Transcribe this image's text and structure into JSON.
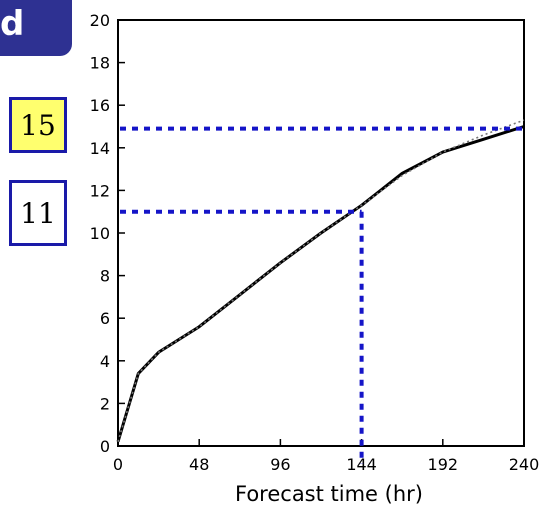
{
  "panel_label": "d",
  "annotations": {
    "upper_value": "15",
    "lower_value": "11"
  },
  "colors": {
    "badge": "#2e3192",
    "guide": "#1515c8",
    "highlight": "#ffff6e"
  },
  "chart_data": {
    "type": "line",
    "title": "",
    "xlabel": "Forecast time (hr)",
    "ylabel": "",
    "xlim": [
      0,
      240
    ],
    "ylim": [
      0,
      20
    ],
    "xticks": [
      0,
      48,
      96,
      144,
      192,
      240
    ],
    "yticks": [
      0,
      2,
      4,
      6,
      8,
      10,
      12,
      14,
      16,
      18,
      20
    ],
    "grid": false,
    "series": [
      {
        "style": "solid",
        "x": [
          0,
          12,
          24,
          48,
          72,
          96,
          120,
          144,
          168,
          192,
          216,
          240
        ],
        "y": [
          0.2,
          3.4,
          4.4,
          5.6,
          7.1,
          8.6,
          10.0,
          11.3,
          12.8,
          13.8,
          14.4,
          15.0
        ]
      },
      {
        "style": "dotted",
        "x": [
          0,
          12,
          24,
          48,
          72,
          96,
          120,
          144,
          168,
          192,
          216,
          240
        ],
        "y": [
          0.2,
          3.4,
          4.4,
          5.6,
          7.1,
          8.6,
          10.0,
          11.3,
          12.7,
          13.8,
          14.6,
          15.3
        ]
      }
    ],
    "guides": [
      {
        "y": 14.9
      },
      {
        "x": 144,
        "y": 11.0
      }
    ]
  }
}
